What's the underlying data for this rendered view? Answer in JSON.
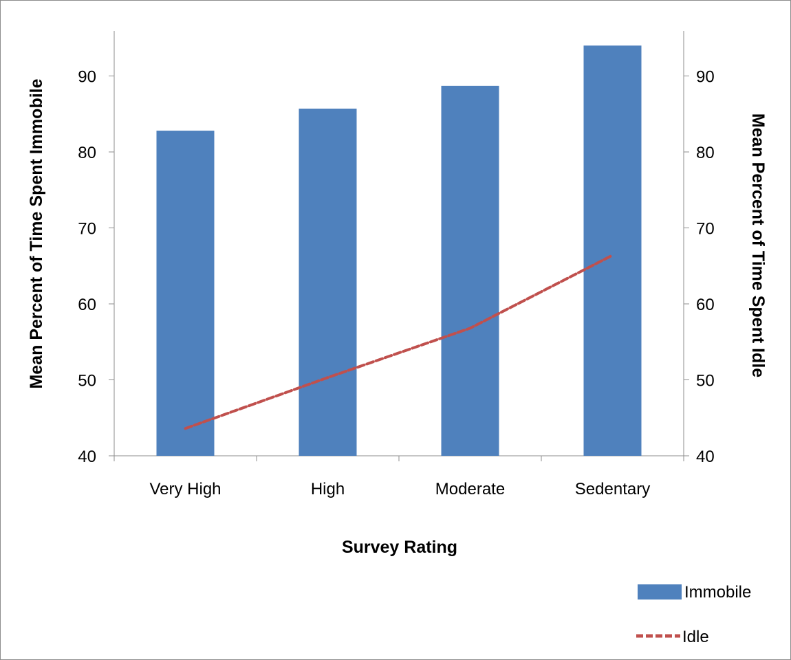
{
  "chart_data": {
    "type": "bar",
    "categories": [
      "Very High",
      "High",
      "Moderate",
      "Sedentary"
    ],
    "series": [
      {
        "name": "Immobile",
        "type": "bar",
        "axis": "left",
        "values": [
          82.8,
          85.7,
          88.7,
          94.0
        ],
        "color": "#4F81BD"
      },
      {
        "name": "Idle",
        "type": "line",
        "axis": "right",
        "line_style": "dashed",
        "values": [
          43.6,
          50.3,
          56.8,
          66.4
        ],
        "color": "#C0504D"
      }
    ],
    "title": "",
    "xlabel": "Survey Rating",
    "ylabel": "Mean Percent of Time Spent Immobile",
    "y2label": "Mean Percent of Time Spent Idle",
    "ylim": [
      40,
      95
    ],
    "y2lim": [
      40,
      95
    ],
    "yticks": [
      40,
      50,
      60,
      70,
      80,
      90
    ],
    "y2ticks": [
      40,
      50,
      60,
      70,
      80,
      90
    ],
    "grid": false,
    "legend_position": "bottom-right"
  }
}
